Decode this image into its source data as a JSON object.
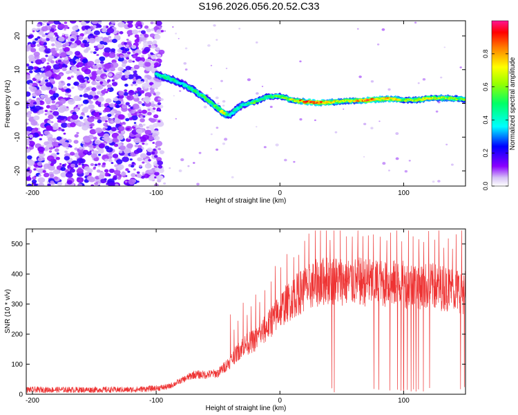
{
  "figure_title": "S196.2026.056.20.52.C33",
  "chart_data": [
    {
      "type": "heatmap",
      "title": "S196.2026.056.20.52.C33",
      "xlabel": "Height of straight line (km)",
      "ylabel": "Frequency (Hz)",
      "xlim": [
        -205,
        150
      ],
      "ylim": [
        -24.5,
        24.5
      ],
      "xticks": [
        -200,
        -100,
        0,
        100
      ],
      "xtick_labels": [
        "-200",
        "-100",
        "0",
        "100"
      ],
      "yticks": [
        -20,
        -10,
        0,
        10,
        20
      ],
      "ytick_labels": [
        "-20",
        "-10",
        "0",
        "10",
        "20"
      ],
      "colorbar": {
        "label": "Normalized spectral amplitude",
        "range": [
          0,
          1
        ],
        "ticks": [
          0,
          0.2,
          0.4,
          0.6,
          0.8
        ],
        "tick_labels": [
          "0.0",
          "0.2",
          "0.4",
          "0.6",
          "0.8"
        ],
        "colormap": "rainbow (white-violet-blue-cyan-green-yellow-red-pink)"
      },
      "features": {
        "noise_region_x": [
          -205,
          -95
        ],
        "ridge": {
          "x": [
            -100,
            -90,
            -80,
            -70,
            -60,
            -50,
            -45,
            -40,
            -35,
            -30,
            -20,
            -10,
            0,
            10,
            20,
            30,
            40,
            50,
            60,
            70,
            80,
            90,
            100,
            110,
            120,
            130,
            140,
            150
          ],
          "freq": [
            8.5,
            7.5,
            6,
            4,
            1.5,
            -1.5,
            -3,
            -3.5,
            -1.5,
            -0.5,
            0.5,
            2,
            2.2,
            1,
            0.5,
            0.2,
            0.3,
            0.6,
            0.8,
            0.9,
            1.2,
            1.4,
            1.0,
            1.0,
            1.5,
            1.6,
            1.5,
            1.2
          ],
          "amplitude": [
            0.35,
            0.45,
            0.3,
            0.4,
            0.45,
            0.5,
            0.7,
            0.3,
            0.4,
            0.35,
            0.5,
            0.45,
            0.5,
            0.6,
            0.85,
            0.9,
            0.75,
            0.6,
            0.65,
            0.85,
            0.7,
            0.75,
            0.55,
            0.6,
            0.65,
            0.6,
            0.55,
            0.5
          ]
        }
      }
    },
    {
      "type": "line",
      "xlabel": "Height of straight line (km)",
      "ylabel": "SNR (10 * v/v)",
      "xlim": [
        -205,
        150
      ],
      "ylim": [
        0,
        550
      ],
      "xticks": [
        -200,
        -100,
        0,
        100
      ],
      "xtick_labels": [
        "-200",
        "-100",
        "0",
        "100"
      ],
      "yticks": [
        0,
        100,
        200,
        300,
        400,
        500
      ],
      "ytick_labels": [
        "0",
        "100",
        "200",
        "300",
        "400",
        "500"
      ],
      "color": "#ee3333",
      "series": [
        {
          "name": "SNR",
          "x_baseline": [
            -205,
            -120,
            -100,
            -90,
            -80,
            -70,
            -60,
            -50,
            -40,
            -30,
            -20,
            -10,
            0,
            10,
            20,
            30,
            40,
            60,
            80,
            100,
            120,
            140,
            150
          ],
          "baseline": [
            15,
            15,
            20,
            25,
            45,
            65,
            65,
            70,
            110,
            160,
            180,
            225,
            280,
            320,
            350,
            370,
            380,
            375,
            370,
            365,
            360,
            350,
            340
          ],
          "spike_peaks_approx": 520,
          "dropout_min": 5
        }
      ]
    }
  ]
}
